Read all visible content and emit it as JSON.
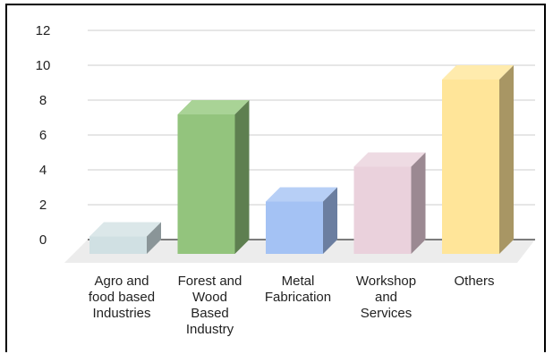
{
  "chart_data": {
    "type": "bar",
    "style": "3d",
    "title": "",
    "xlabel": "",
    "ylabel": "",
    "ylim": [
      0,
      12
    ],
    "yticks": [
      0,
      2,
      4,
      6,
      8,
      10,
      12
    ],
    "grid": true,
    "legend": "none",
    "categories": [
      [
        "Agro and",
        "food based",
        "Industries"
      ],
      [
        "Forest and",
        "Wood",
        "Based",
        "Industry"
      ],
      [
        "Metal",
        "Fabrication"
      ],
      [
        "Workshop",
        "and",
        "Services"
      ],
      [
        "Others"
      ]
    ],
    "values": [
      1,
      8,
      3,
      5,
      10
    ],
    "colors": [
      {
        "front": "#d0e0e3",
        "top": "#dbe7e9",
        "side": "#8a9598"
      },
      {
        "front": "#93c47d",
        "top": "#a9d396",
        "side": "#5e7f50"
      },
      {
        "front": "#a4c2f4",
        "top": "#b7cff6",
        "side": "#6b7ea0"
      },
      {
        "front": "#ead1dc",
        "top": "#eedbe3",
        "side": "#9b8992"
      },
      {
        "front": "#ffe599",
        "top": "#ffebad",
        "side": "#a89664"
      }
    ]
  }
}
